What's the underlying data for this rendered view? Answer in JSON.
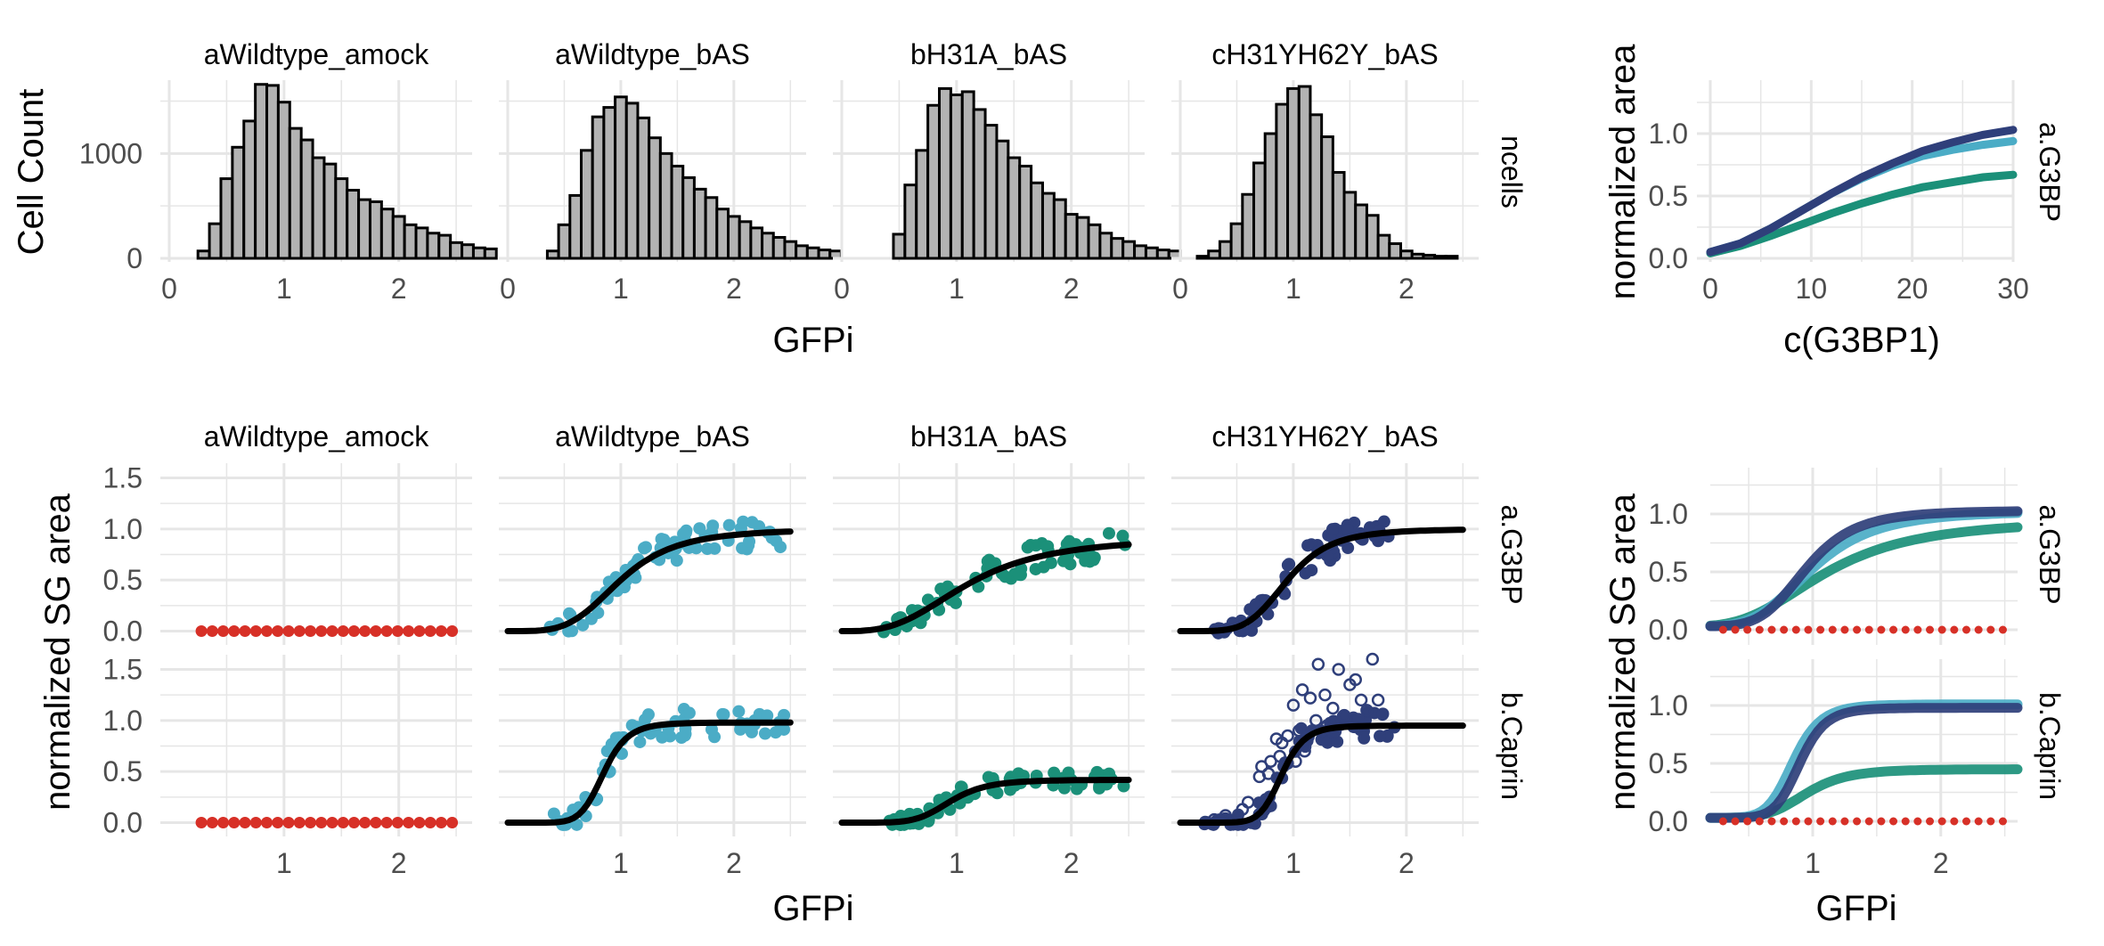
{
  "colors": {
    "grid": "#e6e6e6",
    "text": "#4d4d4d",
    "title": "#000000",
    "hist_fill": "#b3b3b3",
    "fit_line": "#000000",
    "mock": "#d73027",
    "wildtype": "#4bacc6",
    "h31a": "#1b9079",
    "h31yh62y": "#2f3f7a"
  },
  "chart_data": [
    {
      "id": "histograms",
      "type": "bar",
      "facets": [
        "aWildtype_amock",
        "aWildtype_bAS",
        "bH31A_bAS",
        "cH31YH62Y_bAS"
      ],
      "strip_right": "ncells",
      "xlabel": "GFPi",
      "ylabel": "Cell Count",
      "xlim": [
        0,
        2.6
      ],
      "ylim": [
        0,
        1700
      ],
      "x_ticks": [
        "0",
        "1",
        "2"
      ],
      "y_ticks": [
        "0",
        "1000"
      ],
      "bin_width": 0.1,
      "bins": [
        {
          "start": 0.25,
          "counts": [
            70,
            330,
            760,
            1060,
            1310,
            1660,
            1650,
            1490,
            1240,
            1130,
            960,
            900,
            760,
            650,
            560,
            540,
            470,
            400,
            320,
            290,
            240,
            220,
            150,
            130,
            100,
            90
          ]
        },
        {
          "start": 0.35,
          "counts": [
            70,
            320,
            600,
            1030,
            1350,
            1440,
            1540,
            1480,
            1340,
            1150,
            1000,
            880,
            770,
            660,
            580,
            470,
            400,
            350,
            290,
            240,
            200,
            160,
            120,
            100,
            80,
            70
          ]
        },
        {
          "start": 0.45,
          "counts": [
            230,
            700,
            1030,
            1460,
            1620,
            1560,
            1590,
            1420,
            1270,
            1120,
            960,
            880,
            720,
            620,
            560,
            420,
            390,
            320,
            240,
            190,
            160,
            120,
            100,
            80,
            70
          ]
        },
        {
          "start": 0.15,
          "counts": [
            20,
            70,
            160,
            330,
            610,
            910,
            1190,
            1470,
            1620,
            1640,
            1370,
            1160,
            820,
            630,
            510,
            410,
            220,
            140,
            70,
            40,
            30,
            20,
            20
          ]
        }
      ]
    },
    {
      "id": "area_vs_concentration",
      "type": "line",
      "xlabel": "c(G3BP1)",
      "ylabel": "normalized area",
      "strip_right": "a.G3BP",
      "xlim": [
        0,
        30
      ],
      "ylim": [
        0,
        1.5
      ],
      "x_ticks": [
        "0",
        "10",
        "20",
        "30"
      ],
      "y_ticks": [
        "0.0",
        "0.5",
        "1.0"
      ],
      "series": [
        {
          "color_key": "h31a",
          "x": [
            0,
            3,
            6,
            9,
            12,
            15,
            18,
            21,
            24,
            27,
            30
          ],
          "y": [
            0.04,
            0.1,
            0.18,
            0.27,
            0.36,
            0.44,
            0.51,
            0.57,
            0.61,
            0.65,
            0.67
          ]
        },
        {
          "color_key": "wildtype",
          "x": [
            0,
            3,
            6,
            9,
            12,
            15,
            18,
            21,
            24,
            27,
            30
          ],
          "y": [
            0.05,
            0.12,
            0.24,
            0.38,
            0.52,
            0.64,
            0.74,
            0.82,
            0.87,
            0.91,
            0.94
          ]
        },
        {
          "color_key": "h31yh62y",
          "x": [
            0,
            3,
            6,
            9,
            12,
            15,
            18,
            21,
            24,
            27,
            30
          ],
          "y": [
            0.05,
            0.12,
            0.24,
            0.38,
            0.52,
            0.65,
            0.76,
            0.86,
            0.93,
            0.99,
            1.03
          ]
        }
      ]
    },
    {
      "id": "sg_area_grid",
      "type": "scatter",
      "facets": [
        "aWildtype_amock",
        "aWildtype_bAS",
        "bH31A_bAS",
        "cH31YH62Y_bAS"
      ],
      "rows": [
        "a.G3BP",
        "b.Caprin"
      ],
      "xlabel": "GFPi",
      "ylabel": "normalized SG area",
      "xlim": [
        0,
        2.6
      ],
      "ylim": [
        -0.1,
        1.6
      ],
      "x_ticks": [
        "1",
        "2"
      ],
      "y_ticks": [
        "0.0",
        "0.5",
        "1.0",
        "1.5"
      ],
      "hill_fits": [
        [
          null,
          {
            "top": 1.0,
            "ec50": 1.0,
            "n": 4
          },
          {
            "top": 0.92,
            "ec50": 1.1,
            "n": 3
          },
          {
            "top": 1.0,
            "ec50": 0.95,
            "n": 5
          }
        ],
        [
          null,
          {
            "top": 0.98,
            "ec50": 0.85,
            "n": 8
          },
          {
            "top": 0.42,
            "ec50": 0.95,
            "n": 6
          },
          {
            "top": 0.95,
            "ec50": 0.9,
            "n": 9
          }
        ]
      ],
      "open_points": [
        [
          0.3,
          0.03
        ],
        [
          0.4,
          0.07
        ],
        [
          0.45,
          0.02
        ],
        [
          0.55,
          0.13
        ],
        [
          0.6,
          0.2
        ],
        [
          0.7,
          0.45
        ],
        [
          0.72,
          0.55
        ],
        [
          0.78,
          0.48
        ],
        [
          0.8,
          0.6
        ],
        [
          0.85,
          0.82
        ],
        [
          0.88,
          0.65
        ],
        [
          0.9,
          0.78
        ],
        [
          0.95,
          0.85
        ],
        [
          1.0,
          1.15
        ],
        [
          1.02,
          0.6
        ],
        [
          1.05,
          0.9
        ],
        [
          1.08,
          1.3
        ],
        [
          1.1,
          0.7
        ],
        [
          1.15,
          1.22
        ],
        [
          1.2,
          1.0
        ],
        [
          1.22,
          1.55
        ],
        [
          1.28,
          1.25
        ],
        [
          1.3,
          0.95
        ],
        [
          1.35,
          1.12
        ],
        [
          1.4,
          1.5
        ],
        [
          1.45,
          1.05
        ],
        [
          1.5,
          1.35
        ],
        [
          1.55,
          1.4
        ],
        [
          1.6,
          1.2
        ],
        [
          1.65,
          1.1
        ],
        [
          1.7,
          1.6
        ],
        [
          1.75,
          1.2
        ]
      ]
    },
    {
      "id": "sg_area_overlay",
      "type": "line",
      "rows": [
        "a.G3BP",
        "b.Caprin"
      ],
      "xlabel": "GFPi",
      "ylabel": "normalized SG area",
      "xlim": [
        0.2,
        2.6
      ],
      "ylim": [
        -0.1,
        1.4
      ],
      "x_ticks": [
        "1",
        "2"
      ],
      "y_ticks": [
        "0.0",
        "0.5",
        "1.0"
      ]
    }
  ]
}
